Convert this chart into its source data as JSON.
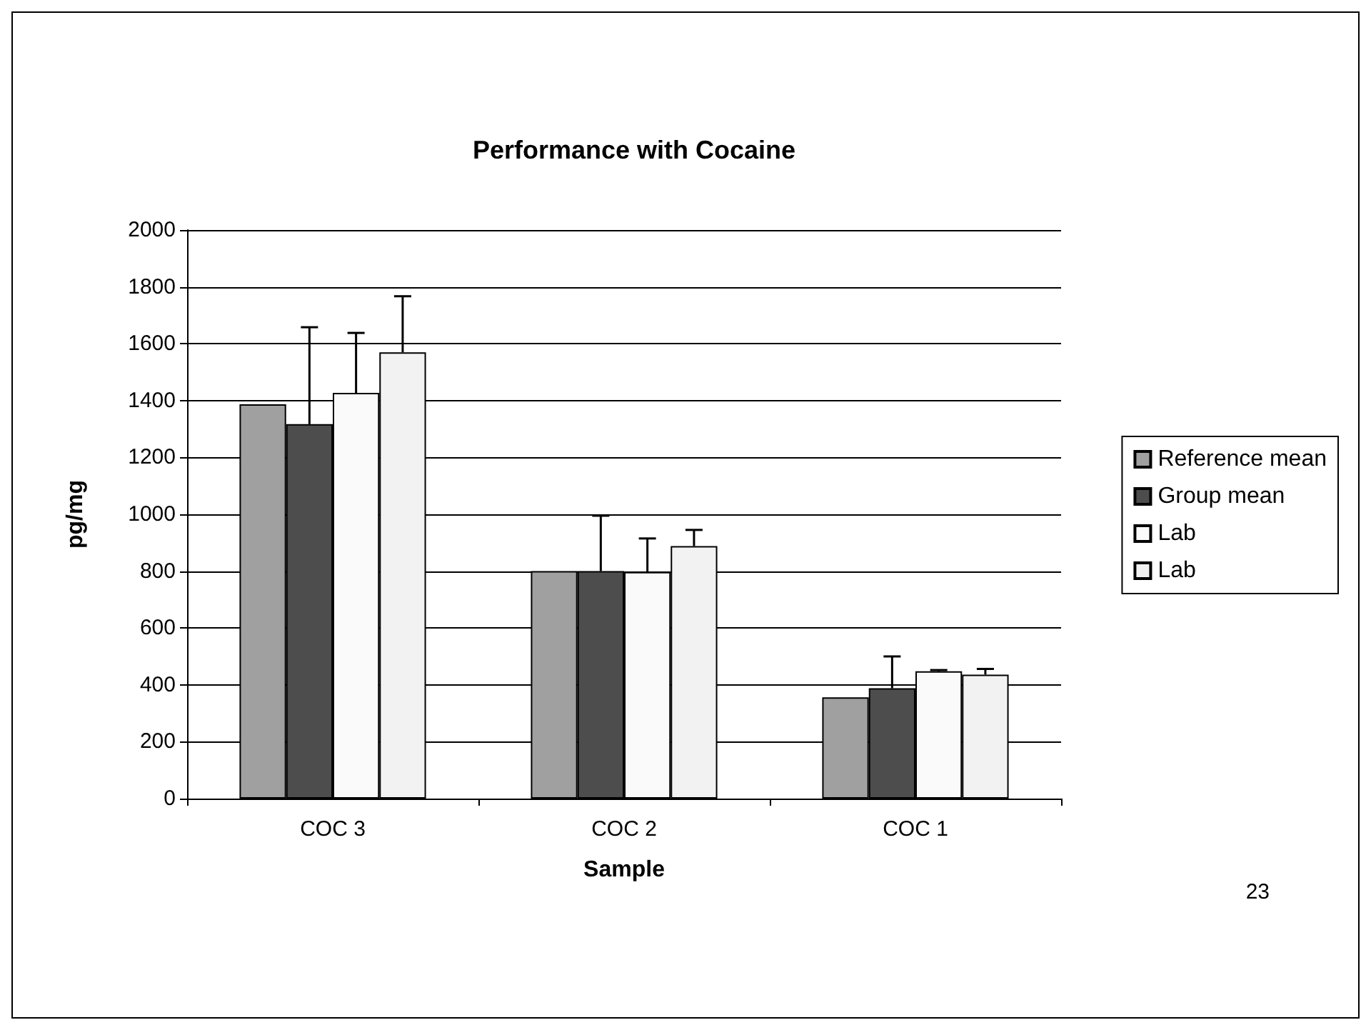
{
  "chart_data": {
    "type": "bar",
    "title": "Performance with Cocaine",
    "xlabel": "Sample",
    "ylabel": "pg/mg",
    "categories": [
      "COC 3",
      "COC 2",
      "COC 1"
    ],
    "series": [
      {
        "name": "Reference mean",
        "color": "#a0a0a0",
        "values": [
          1387,
          800,
          356
        ]
      },
      {
        "name": "Group mean",
        "color": "#4d4d4d",
        "values": [
          1317,
          800,
          388
        ],
        "errors": [
          [
            1317,
            1658
          ],
          [
            800,
            995
          ],
          [
            388,
            500
          ]
        ]
      },
      {
        "name": "Lab",
        "color": "#fafafa",
        "values": [
          1427,
          797,
          448
        ],
        "errors": [
          [
            1427,
            1638
          ],
          [
            797,
            915
          ],
          [
            448,
            452
          ]
        ]
      },
      {
        "name": "Lab",
        "color": "#f2f2f2",
        "values": [
          1570,
          888,
          436
        ],
        "errors": [
          [
            1570,
            1767
          ],
          [
            888,
            945
          ],
          [
            436,
            456
          ]
        ]
      }
    ],
    "ylim": [
      0,
      2000
    ],
    "yticks": [
      0,
      200,
      400,
      600,
      800,
      1000,
      1200,
      1400,
      1600,
      1800,
      2000
    ],
    "grid": "y",
    "legend": "right",
    "annotations": [
      "23"
    ]
  }
}
